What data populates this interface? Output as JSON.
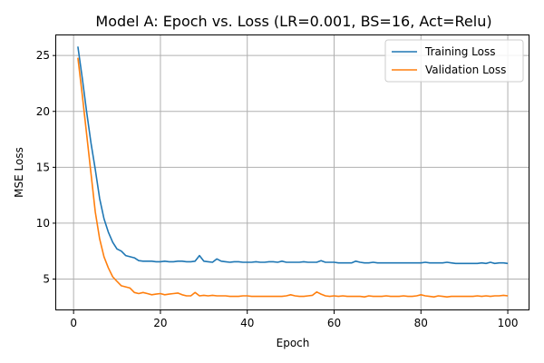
{
  "chart_data": {
    "type": "line",
    "title": "Model A: Epoch vs. Loss (LR=0.001, BS=16, Act=Relu)",
    "xlabel": "Epoch",
    "ylabel": "MSE Loss",
    "xlim": [
      -4,
      105
    ],
    "ylim": [
      2.2,
      26.8
    ],
    "xticks": [
      0,
      20,
      40,
      60,
      80,
      100
    ],
    "yticks": [
      5,
      10,
      15,
      20,
      25
    ],
    "grid": true,
    "legend_position": "top-right",
    "series": [
      {
        "name": "Training Loss",
        "color": "#1f77b4",
        "x": [
          1,
          2,
          3,
          4,
          5,
          6,
          7,
          8,
          9,
          10,
          11,
          12,
          13,
          14,
          15,
          16,
          17,
          18,
          19,
          20,
          21,
          22,
          23,
          24,
          25,
          26,
          27,
          28,
          29,
          30,
          31,
          32,
          33,
          34,
          35,
          36,
          37,
          38,
          39,
          40,
          41,
          42,
          43,
          44,
          45,
          46,
          47,
          48,
          49,
          50,
          51,
          52,
          53,
          54,
          55,
          56,
          57,
          58,
          59,
          60,
          61,
          62,
          63,
          64,
          65,
          66,
          67,
          68,
          69,
          70,
          71,
          72,
          73,
          74,
          75,
          76,
          77,
          78,
          79,
          80,
          81,
          82,
          83,
          84,
          85,
          86,
          87,
          88,
          89,
          90,
          91,
          92,
          93,
          94,
          95,
          96,
          97,
          98,
          99,
          100
        ],
        "values": [
          25.8,
          23.0,
          20.0,
          17.2,
          14.8,
          12.2,
          10.4,
          9.2,
          8.3,
          7.7,
          7.5,
          7.1,
          7.0,
          6.9,
          6.65,
          6.6,
          6.6,
          6.6,
          6.55,
          6.55,
          6.6,
          6.55,
          6.55,
          6.6,
          6.6,
          6.55,
          6.55,
          6.6,
          7.1,
          6.6,
          6.55,
          6.5,
          6.8,
          6.6,
          6.55,
          6.5,
          6.55,
          6.55,
          6.5,
          6.5,
          6.5,
          6.55,
          6.5,
          6.5,
          6.55,
          6.55,
          6.5,
          6.6,
          6.5,
          6.5,
          6.5,
          6.5,
          6.55,
          6.5,
          6.5,
          6.5,
          6.65,
          6.5,
          6.5,
          6.5,
          6.45,
          6.45,
          6.45,
          6.45,
          6.6,
          6.5,
          6.45,
          6.45,
          6.5,
          6.45,
          6.45,
          6.45,
          6.45,
          6.45,
          6.45,
          6.45,
          6.45,
          6.45,
          6.45,
          6.45,
          6.5,
          6.45,
          6.45,
          6.45,
          6.45,
          6.5,
          6.45,
          6.4,
          6.4,
          6.4,
          6.4,
          6.4,
          6.4,
          6.45,
          6.4,
          6.5,
          6.4,
          6.45,
          6.45,
          6.4
        ]
      },
      {
        "name": "Validation Loss",
        "color": "#ff7f0e",
        "x": [
          1,
          2,
          3,
          4,
          5,
          6,
          7,
          8,
          9,
          10,
          11,
          12,
          13,
          14,
          15,
          16,
          17,
          18,
          19,
          20,
          21,
          22,
          23,
          24,
          25,
          26,
          27,
          28,
          29,
          30,
          31,
          32,
          33,
          34,
          35,
          36,
          37,
          38,
          39,
          40,
          41,
          42,
          43,
          44,
          45,
          46,
          47,
          48,
          49,
          50,
          51,
          52,
          53,
          54,
          55,
          56,
          57,
          58,
          59,
          60,
          61,
          62,
          63,
          64,
          65,
          66,
          67,
          68,
          69,
          70,
          71,
          72,
          73,
          74,
          75,
          76,
          77,
          78,
          79,
          80,
          81,
          82,
          83,
          84,
          85,
          86,
          87,
          88,
          89,
          90,
          91,
          92,
          93,
          94,
          95,
          96,
          97,
          98,
          99,
          100
        ],
        "values": [
          24.8,
          21.5,
          18.0,
          14.5,
          11.0,
          8.6,
          7.0,
          6.0,
          5.2,
          4.8,
          4.4,
          4.3,
          4.2,
          3.8,
          3.7,
          3.8,
          3.7,
          3.6,
          3.65,
          3.7,
          3.6,
          3.65,
          3.7,
          3.75,
          3.6,
          3.5,
          3.5,
          3.8,
          3.5,
          3.55,
          3.5,
          3.55,
          3.5,
          3.5,
          3.5,
          3.45,
          3.45,
          3.45,
          3.5,
          3.5,
          3.45,
          3.45,
          3.45,
          3.45,
          3.45,
          3.45,
          3.45,
          3.45,
          3.5,
          3.6,
          3.5,
          3.45,
          3.45,
          3.5,
          3.55,
          3.85,
          3.65,
          3.5,
          3.45,
          3.5,
          3.45,
          3.5,
          3.45,
          3.45,
          3.45,
          3.45,
          3.4,
          3.5,
          3.45,
          3.45,
          3.45,
          3.5,
          3.45,
          3.45,
          3.45,
          3.5,
          3.45,
          3.45,
          3.5,
          3.6,
          3.5,
          3.45,
          3.4,
          3.5,
          3.45,
          3.4,
          3.45,
          3.45,
          3.45,
          3.45,
          3.45,
          3.45,
          3.5,
          3.45,
          3.5,
          3.45,
          3.5,
          3.5,
          3.55,
          3.5
        ]
      }
    ]
  }
}
